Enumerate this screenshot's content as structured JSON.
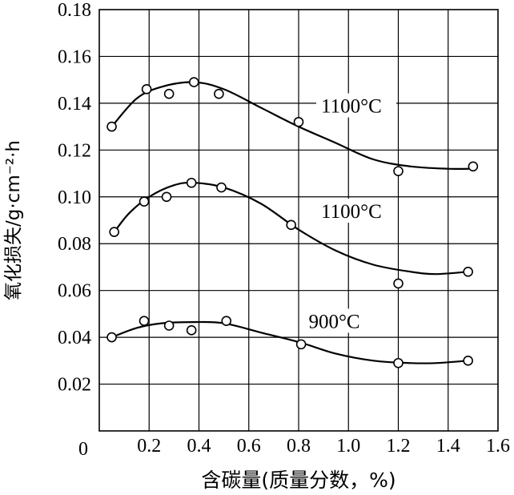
{
  "chart_data": {
    "type": "scatter",
    "title": "",
    "xlabel": "含碳量(质量分数，%)",
    "ylabel": "氧化损失/g·cm⁻²·h",
    "xlim": [
      0,
      1.6
    ],
    "ylim": [
      0,
      0.18
    ],
    "x_ticks": [
      "0",
      "0.2",
      "0.4",
      "0.6",
      "0.8",
      "1.0",
      "1.2",
      "1.4",
      "1.6"
    ],
    "y_ticks": [
      "0.02",
      "0.04",
      "0.06",
      "0.08",
      "0.10",
      "0.12",
      "0.14",
      "0.16",
      "0.18"
    ],
    "grid": true,
    "series": [
      {
        "name": "1100°C",
        "points": [
          [
            0.05,
            0.13
          ],
          [
            0.19,
            0.146
          ],
          [
            0.28,
            0.144
          ],
          [
            0.38,
            0.149
          ],
          [
            0.48,
            0.144
          ],
          [
            0.8,
            0.132
          ],
          [
            1.2,
            0.111
          ],
          [
            1.5,
            0.113
          ]
        ],
        "curve": [
          [
            0.05,
            0.13
          ],
          [
            0.15,
            0.142
          ],
          [
            0.25,
            0.147
          ],
          [
            0.38,
            0.149
          ],
          [
            0.5,
            0.146
          ],
          [
            0.65,
            0.138
          ],
          [
            0.8,
            0.13
          ],
          [
            0.95,
            0.123
          ],
          [
            1.1,
            0.116
          ],
          [
            1.25,
            0.113
          ],
          [
            1.4,
            0.112
          ],
          [
            1.5,
            0.112
          ]
        ],
        "label": "1100°C",
        "label_at": [
          0.89,
          0.136
        ]
      },
      {
        "name": "1100°C",
        "points": [
          [
            0.06,
            0.085
          ],
          [
            0.18,
            0.098
          ],
          [
            0.27,
            0.1
          ],
          [
            0.37,
            0.106
          ],
          [
            0.49,
            0.104
          ],
          [
            0.77,
            0.088
          ],
          [
            1.2,
            0.063
          ],
          [
            1.48,
            0.068
          ]
        ],
        "curve": [
          [
            0.06,
            0.085
          ],
          [
            0.12,
            0.093
          ],
          [
            0.2,
            0.1
          ],
          [
            0.3,
            0.105
          ],
          [
            0.38,
            0.106
          ],
          [
            0.5,
            0.104
          ],
          [
            0.65,
            0.097
          ],
          [
            0.8,
            0.086
          ],
          [
            0.95,
            0.077
          ],
          [
            1.1,
            0.071
          ],
          [
            1.25,
            0.068
          ],
          [
            1.35,
            0.067
          ],
          [
            1.48,
            0.068
          ]
        ],
        "label": "1100°C",
        "label_at": [
          0.89,
          0.091
        ]
      },
      {
        "name": "900°C",
        "points": [
          [
            0.05,
            0.04
          ],
          [
            0.18,
            0.047
          ],
          [
            0.28,
            0.045
          ],
          [
            0.37,
            0.043
          ],
          [
            0.51,
            0.047
          ],
          [
            0.81,
            0.037
          ],
          [
            1.2,
            0.029
          ],
          [
            1.48,
            0.03
          ]
        ],
        "curve": [
          [
            0.05,
            0.04
          ],
          [
            0.15,
            0.044
          ],
          [
            0.25,
            0.046
          ],
          [
            0.38,
            0.0465
          ],
          [
            0.5,
            0.046
          ],
          [
            0.65,
            0.042
          ],
          [
            0.8,
            0.038
          ],
          [
            0.95,
            0.033
          ],
          [
            1.1,
            0.03
          ],
          [
            1.25,
            0.029
          ],
          [
            1.35,
            0.029
          ],
          [
            1.48,
            0.03
          ]
        ],
        "label": "900°C",
        "label_at": [
          0.84,
          0.044
        ]
      }
    ]
  }
}
